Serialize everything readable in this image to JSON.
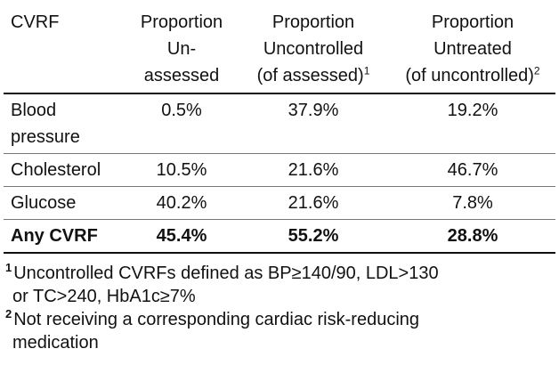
{
  "table": {
    "headers": {
      "col0": "CVRF",
      "col1": [
        "Proportion",
        "Un-",
        "assessed"
      ],
      "col2": [
        "Proportion",
        "Uncontrolled",
        "(of assessed)"
      ],
      "col2_sup": "1",
      "col3": [
        "Proportion",
        "Untreated",
        "(of uncontrolled)"
      ],
      "col3_sup": "2"
    },
    "rows": [
      {
        "label": [
          "Blood",
          "pressure"
        ],
        "unassessed": "0.5%",
        "uncontrolled": "37.9%",
        "untreated": "19.2%"
      },
      {
        "label": [
          "Cholesterol"
        ],
        "unassessed": "10.5%",
        "uncontrolled": "21.6%",
        "untreated": "46.7%"
      },
      {
        "label": [
          "Glucose"
        ],
        "unassessed": "40.2%",
        "uncontrolled": "21.6%",
        "untreated": "7.8%"
      }
    ],
    "total": {
      "label": "Any CVRF",
      "unassessed": "45.4%",
      "uncontrolled": "55.2%",
      "untreated": "28.8%"
    }
  },
  "footnotes": [
    {
      "marker": "1",
      "lines": [
        "Uncontrolled CVRFs defined as BP≥140/90, LDL>130",
        "or TC>240, HbA1c≥7%"
      ]
    },
    {
      "marker": "2",
      "lines": [
        "Not receiving a corresponding cardiac risk-reducing",
        "medication"
      ]
    }
  ]
}
